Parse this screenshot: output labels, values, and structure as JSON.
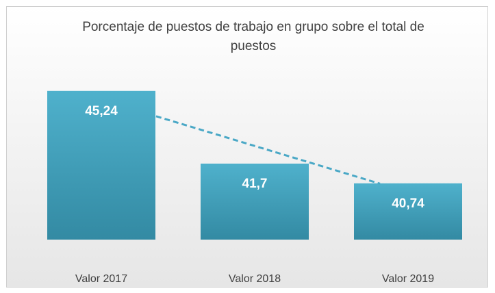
{
  "chart_data": {
    "type": "bar",
    "title": "Porcentaje de puestos de trabajo en grupo sobre el total de puestos",
    "categories": [
      "Valor 2017",
      "Valor 2018",
      "Valor 2019"
    ],
    "values": [
      45.24,
      41.7,
      40.74
    ],
    "value_labels": [
      "45,24",
      "41,7",
      "40,74"
    ],
    "color": "#4bacc6",
    "ylim": [
      38,
      46
    ],
    "trendline": "linear"
  }
}
